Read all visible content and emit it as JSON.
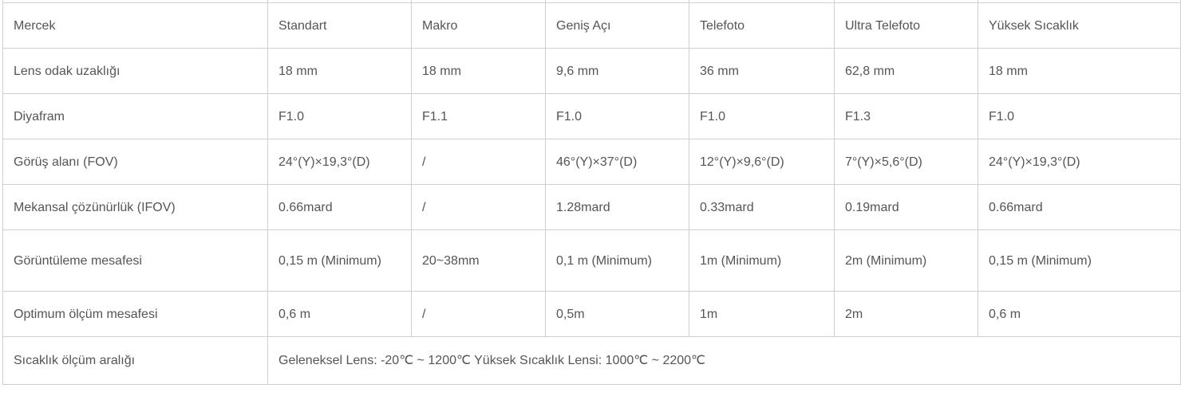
{
  "table": {
    "header": {
      "label": "Mercek",
      "cells": [
        "Standart",
        "Makro",
        "Geniş Açı",
        "Telefoto",
        "Ultra Telefoto",
        "Yüksek Sıcaklık"
      ]
    },
    "rows": [
      {
        "label": "Lens odak uzaklığı",
        "cells": [
          "18 mm",
          "18 mm",
          "9,6 mm",
          "36 mm",
          "62,8 mm",
          "18 mm"
        ]
      },
      {
        "label": "Diyafram",
        "cells": [
          "F1.0",
          "F1.1",
          "F1.0",
          "F1.0",
          "F1.3",
          "F1.0"
        ]
      },
      {
        "label": "Görüş alanı (FOV)",
        "cells": [
          "24°(Y)×19,3°(D)",
          "/",
          "46°(Y)×37°(D)",
          "12°(Y)×9,6°(D)",
          "7°(Y)×5,6°(D)",
          "24°(Y)×19,3°(D)"
        ]
      },
      {
        "label": "Mekansal çözünürlük (IFOV)",
        "cells": [
          "0.66mard",
          "/",
          "1.28mard",
          "0.33mard",
          "0.19mard",
          "0.66mard"
        ]
      },
      {
        "label": "Görüntüleme mesafesi",
        "cells": [
          "0,15 m (Minimum)",
          "20~38mm",
          "0,1 m (Minimum)",
          "1m (Minimum)",
          "2m (Minimum)",
          "0,15 m (Minimum)"
        ]
      },
      {
        "label": "Optimum ölçüm mesafesi",
        "cells": [
          "0,6 m",
          "/",
          "0,5m",
          "1m",
          "2m",
          "0,6 m"
        ]
      }
    ],
    "temperature_row": {
      "label": "Sıcaklık ölçüm aralığı",
      "value": "Geleneksel Lens: -20℃ ~ 1200℃ Yüksek Sıcaklık Lensi: 1000℃ ~ 2200℃"
    }
  }
}
